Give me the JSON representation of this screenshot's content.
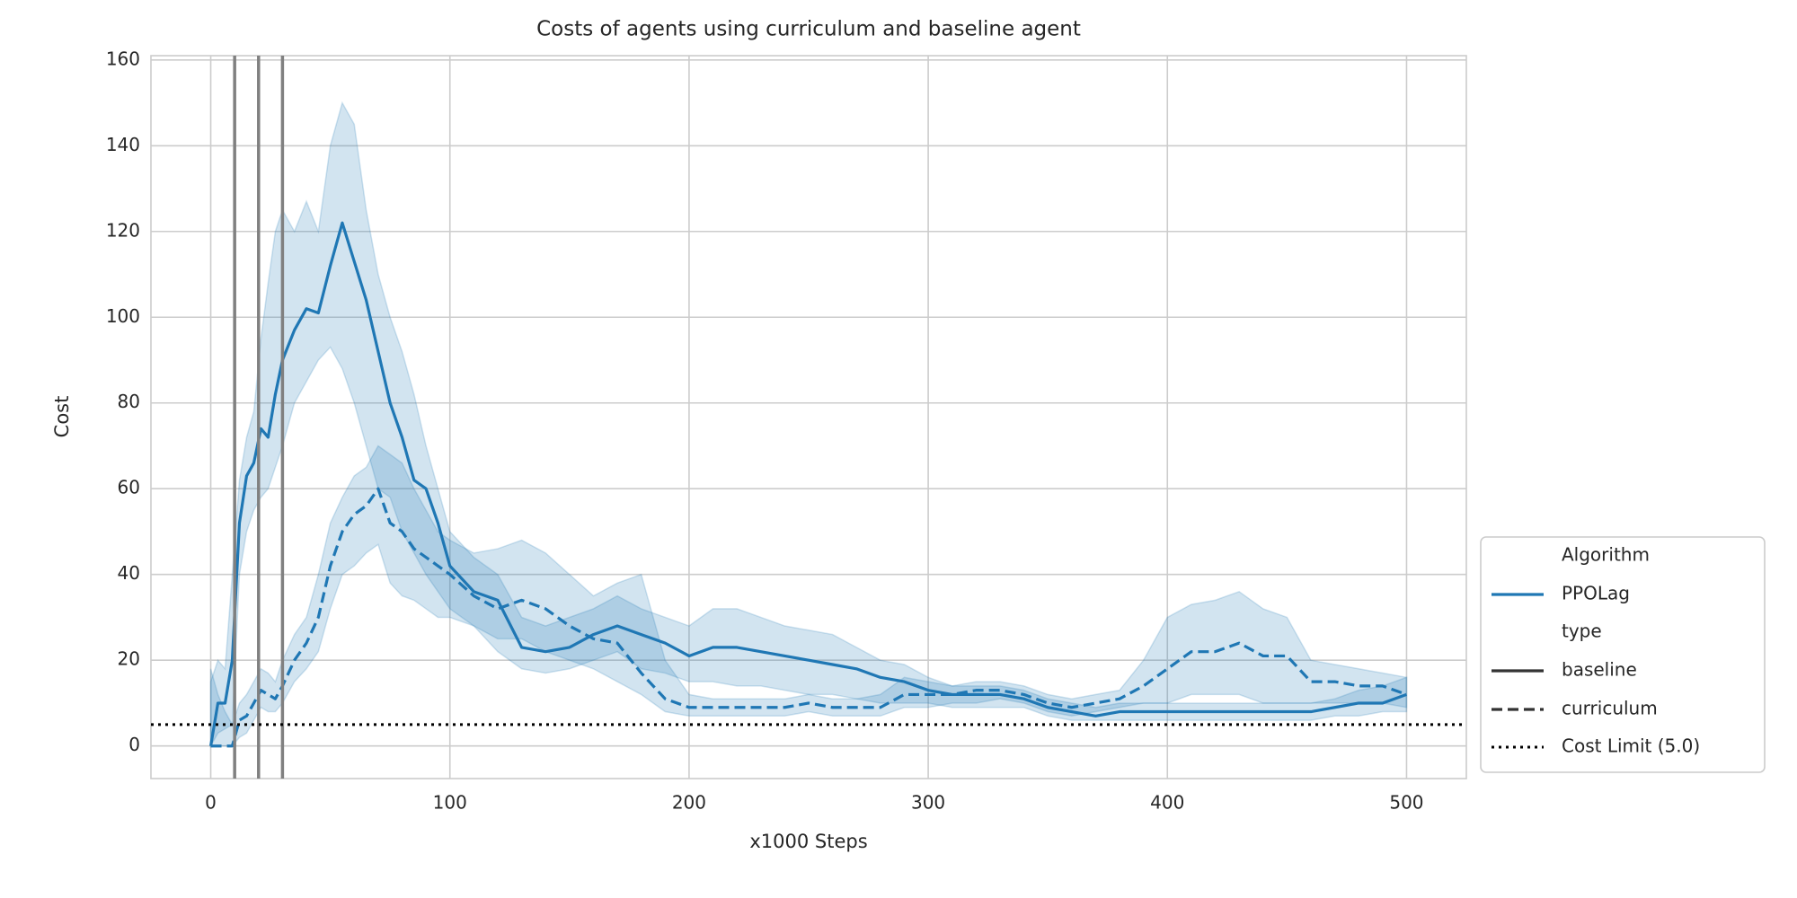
{
  "chart_data": {
    "type": "line",
    "title": "Costs of agents using curriculum and baseline agent",
    "x_label": "x1000 Steps",
    "y_label": "Cost",
    "xlim": [
      -25,
      525
    ],
    "ylim": [
      -7.6,
      161
    ],
    "xticks": [
      0,
      100,
      200,
      300,
      400,
      500
    ],
    "yticks": [
      0,
      20,
      40,
      60,
      80,
      100,
      120,
      140,
      160
    ],
    "grid": true,
    "color": "#1f77b4",
    "x": [
      0,
      3,
      6,
      9,
      12,
      15,
      18,
      21,
      24,
      27,
      30,
      35,
      40,
      45,
      50,
      55,
      60,
      65,
      70,
      75,
      80,
      85,
      90,
      95,
      100,
      110,
      120,
      130,
      140,
      150,
      160,
      170,
      180,
      190,
      200,
      210,
      220,
      230,
      240,
      250,
      260,
      270,
      280,
      290,
      300,
      310,
      320,
      330,
      340,
      350,
      360,
      370,
      380,
      390,
      400,
      410,
      420,
      430,
      440,
      450,
      460,
      470,
      480,
      490,
      500
    ],
    "series": [
      {
        "name": "baseline",
        "dash": "solid",
        "values": [
          0,
          10,
          10,
          20,
          52,
          63,
          66,
          74,
          72,
          82,
          90,
          97,
          102,
          101,
          112,
          122,
          113,
          104,
          92,
          80,
          72,
          62,
          60,
          52,
          42,
          36,
          34,
          23,
          22,
          23,
          26,
          28,
          26,
          24,
          21,
          23,
          23,
          22,
          21,
          20,
          19,
          18,
          16,
          15,
          13,
          12,
          12,
          12,
          11,
          9,
          8,
          7,
          8,
          8,
          8,
          8,
          8,
          8,
          8,
          8,
          8,
          9,
          10,
          10,
          12
        ],
        "lower": [
          0,
          3,
          4,
          5,
          40,
          50,
          55,
          58,
          60,
          65,
          70,
          80,
          85,
          90,
          93,
          88,
          80,
          70,
          60,
          58,
          50,
          45,
          40,
          36,
          32,
          28,
          22,
          18,
          17,
          18,
          20,
          22,
          18,
          17,
          15,
          15,
          14,
          14,
          13,
          12,
          12,
          11,
          10,
          10,
          10,
          9,
          9,
          9,
          9,
          7,
          6,
          6,
          6,
          6,
          6,
          6,
          6,
          6,
          6,
          6,
          6,
          7,
          7,
          8,
          8
        ],
        "upper": [
          15,
          20,
          18,
          40,
          62,
          72,
          78,
          95,
          108,
          120,
          125,
          120,
          127,
          120,
          140,
          150,
          145,
          125,
          110,
          100,
          92,
          82,
          70,
          60,
          50,
          44,
          40,
          30,
          28,
          30,
          32,
          35,
          32,
          30,
          28,
          32,
          32,
          30,
          28,
          27,
          26,
          23,
          20,
          19,
          16,
          14,
          14,
          14,
          13,
          11,
          10,
          9,
          10,
          10,
          10,
          10,
          10,
          10,
          10,
          10,
          10,
          11,
          13,
          14,
          16
        ]
      },
      {
        "name": "curriculum",
        "dash": "dashed",
        "values": [
          0,
          0,
          0,
          0,
          6,
          7,
          10,
          13,
          12,
          11,
          14,
          20,
          24,
          30,
          42,
          50,
          54,
          56,
          60,
          52,
          50,
          46,
          44,
          42,
          40,
          35,
          32,
          34,
          32,
          28,
          25,
          24,
          17,
          11,
          9,
          9,
          9,
          9,
          9,
          10,
          9,
          9,
          9,
          12,
          12,
          12,
          13,
          13,
          12,
          10,
          9,
          10,
          11,
          14,
          18,
          22,
          22,
          24,
          21,
          21,
          15,
          15,
          14,
          14,
          12
        ],
        "lower": [
          0,
          0,
          0,
          0,
          2,
          3,
          6,
          9,
          8,
          8,
          10,
          15,
          18,
          22,
          32,
          40,
          42,
          45,
          47,
          38,
          35,
          34,
          32,
          30,
          30,
          28,
          25,
          25,
          22,
          20,
          18,
          15,
          12,
          8,
          7,
          7,
          7,
          7,
          7,
          8,
          7,
          7,
          7,
          9,
          9,
          10,
          10,
          11,
          10,
          8,
          7,
          8,
          9,
          10,
          10,
          12,
          12,
          12,
          10,
          10,
          10,
          10,
          10,
          10,
          9
        ],
        "upper": [
          18,
          12,
          8,
          5,
          10,
          12,
          15,
          18,
          17,
          15,
          20,
          26,
          30,
          40,
          52,
          58,
          63,
          65,
          70,
          68,
          66,
          60,
          55,
          50,
          48,
          45,
          46,
          48,
          45,
          40,
          35,
          38,
          40,
          20,
          12,
          11,
          11,
          11,
          11,
          12,
          11,
          11,
          12,
          16,
          15,
          14,
          15,
          15,
          14,
          12,
          11,
          12,
          13,
          20,
          30,
          33,
          34,
          36,
          32,
          30,
          20,
          19,
          18,
          17,
          16
        ]
      }
    ],
    "vlines": [
      10,
      20,
      30
    ],
    "vline_color": "#808080",
    "limit": {
      "label": "Cost Limit (5.0)",
      "value": 5
    },
    "legend": {
      "hue_title": "Algorithm",
      "hue_name": "PPOLag",
      "style_title": "type",
      "corner": "lower right outside"
    }
  }
}
